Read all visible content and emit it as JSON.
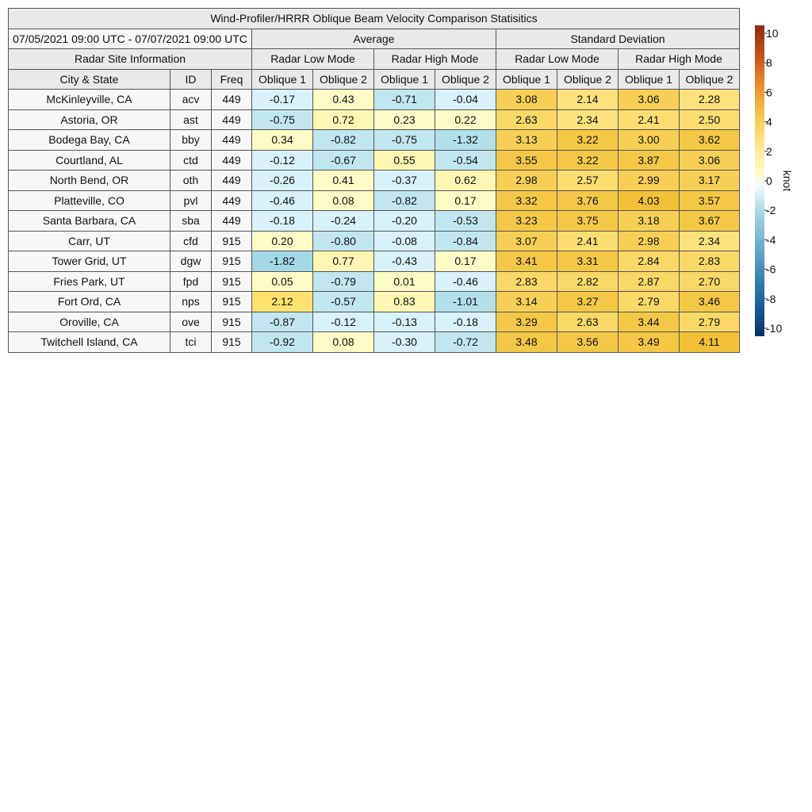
{
  "chart_data": {
    "type": "table",
    "title": "Wind-Profiler/HRRR Oblique Beam Velocity Comparison Statisitics",
    "date_range": "07/05/2021 09:00 UTC - 07/07/2021 09:00 UTC",
    "group_headers": [
      "Average",
      "Standard Deviation"
    ],
    "info_header": "Radar Site Information",
    "mode_headers": [
      "Radar Low Mode",
      "Radar High Mode",
      "Radar Low Mode",
      "Radar High Mode"
    ],
    "columns": [
      "City & State",
      "ID",
      "Freq",
      "Oblique 1",
      "Oblique 2",
      "Oblique 1",
      "Oblique 2",
      "Oblique 1",
      "Oblique 2",
      "Oblique 1",
      "Oblique 2"
    ],
    "rows": [
      {
        "city": "McKinleyville, CA",
        "id": "acv",
        "freq": "449",
        "values": [
          "-0.17",
          "0.43",
          "-0.71",
          "-0.04",
          "3.08",
          "2.14",
          "3.06",
          "2.28"
        ]
      },
      {
        "city": "Astoria, OR",
        "id": "ast",
        "freq": "449",
        "values": [
          "-0.75",
          "0.72",
          "0.23",
          "0.22",
          "2.63",
          "2.34",
          "2.41",
          "2.50"
        ]
      },
      {
        "city": "Bodega Bay, CA",
        "id": "bby",
        "freq": "449",
        "values": [
          "0.34",
          "-0.82",
          "-0.75",
          "-1.32",
          "3.13",
          "3.22",
          "3.00",
          "3.62"
        ]
      },
      {
        "city": "Courtland, AL",
        "id": "ctd",
        "freq": "449",
        "values": [
          "-0.12",
          "-0.67",
          "0.55",
          "-0.54",
          "3.55",
          "3.22",
          "3.87",
          "3.06"
        ]
      },
      {
        "city": "North Bend, OR",
        "id": "oth",
        "freq": "449",
        "values": [
          "-0.26",
          "0.41",
          "-0.37",
          "0.62",
          "2.98",
          "2.57",
          "2.99",
          "3.17"
        ]
      },
      {
        "city": "Platteville, CO",
        "id": "pvl",
        "freq": "449",
        "values": [
          "-0.46",
          "0.08",
          "-0.82",
          "0.17",
          "3.32",
          "3.76",
          "4.03",
          "3.57"
        ]
      },
      {
        "city": "Santa Barbara, CA",
        "id": "sba",
        "freq": "449",
        "values": [
          "-0.18",
          "-0.24",
          "-0.20",
          "-0.53",
          "3.23",
          "3.75",
          "3.18",
          "3.67"
        ]
      },
      {
        "city": "Carr, UT",
        "id": "cfd",
        "freq": "915",
        "values": [
          "0.20",
          "-0.80",
          "-0.08",
          "-0.84",
          "3.07",
          "2.41",
          "2.98",
          "2.34"
        ]
      },
      {
        "city": "Tower Grid, UT",
        "id": "dgw",
        "freq": "915",
        "values": [
          "-1.82",
          "0.77",
          "-0.43",
          "0.17",
          "3.41",
          "3.31",
          "2.84",
          "2.83"
        ]
      },
      {
        "city": "Fries Park, UT",
        "id": "fpd",
        "freq": "915",
        "values": [
          "0.05",
          "-0.79",
          "0.01",
          "-0.46",
          "2.83",
          "2.82",
          "2.87",
          "2.70"
        ]
      },
      {
        "city": "Fort Ord, CA",
        "id": "nps",
        "freq": "915",
        "values": [
          "2.12",
          "-0.57",
          "0.83",
          "-1.01",
          "3.14",
          "3.27",
          "2.79",
          "3.46"
        ]
      },
      {
        "city": "Oroville, CA",
        "id": "ove",
        "freq": "915",
        "values": [
          "-0.87",
          "-0.12",
          "-0.13",
          "-0.18",
          "3.29",
          "2.63",
          "3.44",
          "2.79"
        ]
      },
      {
        "city": "Twitchell Island, CA",
        "id": "tci",
        "freq": "915",
        "values": [
          "-0.92",
          "0.08",
          "-0.30",
          "-0.72",
          "3.48",
          "3.56",
          "3.49",
          "4.11"
        ]
      }
    ],
    "colorbar": {
      "label": "knot",
      "range": [
        -10,
        10
      ],
      "ticks": [
        "10",
        "8",
        "6",
        "4",
        "2",
        "0",
        "-2",
        "-4",
        "-6",
        "-8",
        "-10"
      ],
      "colors": {
        "v_neg10": "#08306b",
        "v_neg8": "#1a5e9b",
        "v_neg6": "#3c87b8",
        "v_neg4": "#6fb0cf",
        "v_neg2": "#a9d7e5",
        "v_0": "#eef9fb",
        "v_pos1": "#fefcc6",
        "v_pos2": "#feeb98",
        "v_pos4": "#f8cb4e",
        "v_pos6": "#ec922c",
        "v_pos8": "#c9541a",
        "v_pos10": "#8c2a0c"
      }
    }
  }
}
